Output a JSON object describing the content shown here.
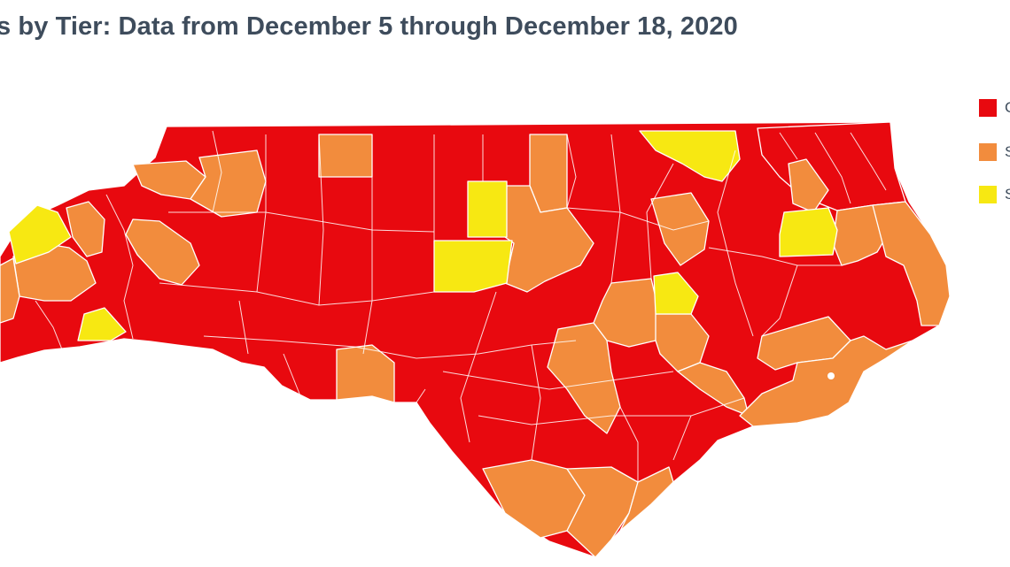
{
  "title": "s by Tier: Data from December 5 through December 18, 2020",
  "colors": {
    "red": "#e8090f",
    "orange": "#f28c3d",
    "yellow": "#f7e812",
    "text": "#3e4c5c",
    "background": "#ffffff",
    "border": "#ffffff"
  },
  "legend": [
    {
      "color": "#e8090f",
      "label": "C"
    },
    {
      "color": "#f28c3d",
      "label": "S"
    },
    {
      "color": "#f7e812",
      "label": "S"
    }
  ]
}
